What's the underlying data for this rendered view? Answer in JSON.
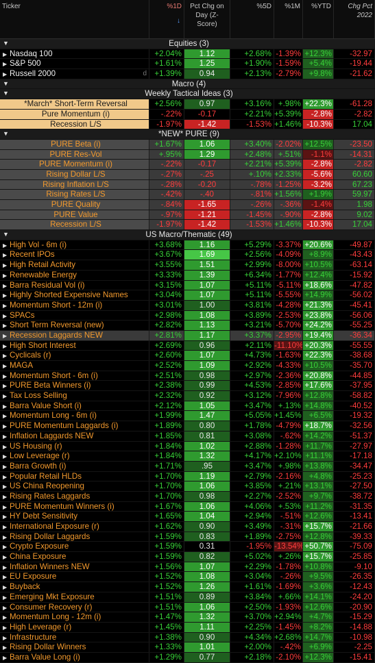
{
  "columns": [
    "Ticker",
    "%1D",
    "Pct Chg on Day (Z-Score)",
    "%5D",
    "%1M",
    "%YTD",
    "Chg Pct 2022"
  ],
  "col_header_lines": [
    [
      "Ticker"
    ],
    [
      "%1D"
    ],
    [
      "Pct Chg on",
      "Day (Z-",
      "Score)"
    ],
    [
      "%5D"
    ],
    [
      "%1M"
    ],
    [
      "%YTD"
    ],
    [
      "Chg Pct",
      "2022"
    ]
  ],
  "sort_arrow": "↓",
  "sections": [
    {
      "title": "Equities (3)",
      "rows": [
        {
          "name": "Nasdaq 100",
          "d1": "+2.04%",
          "z": "1.12",
          "d5": "+2.68%",
          "m1": "-1.39%",
          "ytd": "+12.3%",
          "y22": "-32.97",
          "style": "white",
          "zc": "g2",
          "mark": ""
        },
        {
          "name": "S&P 500",
          "d1": "+1.61%",
          "z": "1.25",
          "d5": "+1.90%",
          "m1": "-1.59%",
          "ytd": "+5.4%",
          "y22": "-19.44",
          "style": "white",
          "zc": "g2",
          "mark": ""
        },
        {
          "name": "Russell 2000",
          "d1": "+1.39%",
          "z": "0.94",
          "d5": "+2.13%",
          "m1": "-2.79%",
          "ytd": "+9.8%",
          "y22": "-21.62",
          "style": "white",
          "zc": "g1",
          "mark": "d"
        }
      ]
    },
    {
      "title": "Macro (4)",
      "rows": []
    },
    {
      "title": "Weekly Tactical Ideas (3)",
      "rows": [
        {
          "name": "*March* Short-Term Reversal",
          "d1": "+2.56%",
          "z": "0.97",
          "d5": "+3.16%",
          "m1": "+.98%",
          "ytd": "+22.3%",
          "y22": "-61.28",
          "style": "ylw",
          "zc": "g1",
          "mark": ""
        },
        {
          "name": "Pure Momentum (i)",
          "d1": "-.22%",
          "z": "-0.17",
          "d5": "+2.21%",
          "m1": "+5.39%",
          "ytd": "-2.8%",
          "y22": "-2.82",
          "style": "ylw",
          "zc": "",
          "mark": ""
        },
        {
          "name": "Recession L/S",
          "d1": "-1.97%",
          "z": "-1.42",
          "d5": "-1.53%",
          "m1": "+1.46%",
          "ytd": "-10.3%",
          "y22": "17.04",
          "style": "ylw",
          "zc": "r2",
          "mark": ""
        }
      ]
    },
    {
      "title": "*NEW* PURE (9)",
      "rows": [
        {
          "name": "PURE Beta (i)",
          "d1": "+1.67%",
          "z": "1.06",
          "d5": "+3.40%",
          "m1": "-2.02%",
          "ytd": "+12.5%",
          "y22": "-23.50",
          "style": "grey",
          "zc": "g2",
          "mark": ""
        },
        {
          "name": "PURE Res-Vol",
          "d1": "+.95%",
          "z": "1.29",
          "d5": "+2.48%",
          "m1": "+.51%",
          "ytd": "-1.1%",
          "y22": "-14.31",
          "style": "grey",
          "zc": "g2",
          "mark": ""
        },
        {
          "name": "PURE Momentum (i)",
          "d1": "-.22%",
          "z": "-0.17",
          "d5": "+2.21%",
          "m1": "+5.39%",
          "ytd": "-2.8%",
          "y22": "-2.82",
          "style": "grey",
          "zc": "",
          "mark": ""
        },
        {
          "name": "Rising Dollar L/S",
          "d1": "-.27%",
          "z": "-.25",
          "d5": "+.10%",
          "m1": "+2.33%",
          "ytd": "-5.6%",
          "y22": "60.60",
          "style": "grey",
          "zc": "",
          "mark": ""
        },
        {
          "name": "Rising Inflation L/S",
          "d1": "-.28%",
          "z": "-0.20",
          "d5": "-.78%",
          "m1": "-1.25%",
          "ytd": "-3.2%",
          "y22": "67.23",
          "style": "grey",
          "zc": "",
          "mark": ""
        },
        {
          "name": "Rising Rates L/S",
          "d1": "-.42%",
          "z": "-.40",
          "d5": "-.81%",
          "m1": "+1.56%",
          "ytd": "+1.9%",
          "y22": "59.97",
          "style": "grey",
          "zc": "",
          "mark": ""
        },
        {
          "name": "PURE Quality",
          "d1": "-.84%",
          "z": "-1.65",
          "d5": "-.26%",
          "m1": "-.36%",
          "ytd": "-1.4%",
          "y22": "1.98",
          "style": "grey",
          "zc": "r2",
          "mark": ""
        },
        {
          "name": "PURE Value",
          "d1": "-.97%",
          "z": "-1.21",
          "d5": "-1.45%",
          "m1": "-.90%",
          "ytd": "-2.8%",
          "y22": "9.02",
          "style": "grey",
          "zc": "r2",
          "mark": ""
        },
        {
          "name": "Recession L/S",
          "d1": "-1.97%",
          "z": "-1.42",
          "d5": "-1.53%",
          "m1": "+1.46%",
          "ytd": "-10.3%",
          "y22": "17.04",
          "style": "grey",
          "zc": "r2",
          "mark": ""
        }
      ]
    },
    {
      "title": "US Macro/Thematic (49)",
      "rows": [
        {
          "name": "High Vol - 6m (i)",
          "d1": "+3.68%",
          "z": "1.16",
          "d5": "+5.29%",
          "m1": "-3.37%",
          "ytd": "+20.6%",
          "y22": "-49.87",
          "style": "orange",
          "zc": "g2",
          "mark": ""
        },
        {
          "name": "Recent IPOs",
          "d1": "+3.67%",
          "z": "1.69",
          "d5": "+2.56%",
          "m1": "-4.09%",
          "ytd": "+8.9%",
          "y22": "-43.43",
          "style": "orange",
          "zc": "g3",
          "mark": ""
        },
        {
          "name": "High Retail Activity",
          "d1": "+3.55%",
          "z": "1.51",
          "d5": "+2.99%",
          "m1": "-8.00%",
          "ytd": "+10.5%",
          "y22": "-63.14",
          "style": "orange",
          "zc": "g2",
          "mark": ""
        },
        {
          "name": "Renewable Energy",
          "d1": "+3.33%",
          "z": "1.39",
          "d5": "+6.34%",
          "m1": "-1.77%",
          "ytd": "+12.4%",
          "y22": "-15.92",
          "style": "orange",
          "zc": "g2",
          "mark": ""
        },
        {
          "name": "Barra Residual Vol (i)",
          "d1": "+3.15%",
          "z": "1.07",
          "d5": "+5.11%",
          "m1": "-5.11%",
          "ytd": "+18.6%",
          "y22": "-47.82",
          "style": "orange",
          "zc": "g2",
          "mark": ""
        },
        {
          "name": "Highly Shorted Expensive Names",
          "d1": "+3.04%",
          "z": "1.07",
          "d5": "+5.11%",
          "m1": "-5.55%",
          "ytd": "+14.9%",
          "y22": "-56.02",
          "style": "orange",
          "zc": "g2",
          "mark": ""
        },
        {
          "name": "Momentum Short - 12m (i)",
          "d1": "+3.01%",
          "z": "1.00",
          "d5": "+3.81%",
          "m1": "-4.28%",
          "ytd": "+21.3%",
          "y22": "-45.41",
          "style": "orange",
          "zc": "g1",
          "mark": ""
        },
        {
          "name": "SPACs",
          "d1": "+2.98%",
          "z": "1.08",
          "d5": "+3.89%",
          "m1": "-2.53%",
          "ytd": "+23.8%",
          "y22": "-56.06",
          "style": "orange",
          "zc": "g2",
          "mark": ""
        },
        {
          "name": "Short Term Reversal (new)",
          "d1": "+2.82%",
          "z": "1.13",
          "d5": "+3.21%",
          "m1": "-5.70%",
          "ytd": "+24.2%",
          "y22": "-55.25",
          "style": "orange",
          "zc": "g2",
          "mark": ""
        },
        {
          "name": "Recession Laggards NEW",
          "d1": "+2.81%",
          "z": "1.17",
          "d5": "+3.37%",
          "m1": "-2.95%",
          "ytd": "+19.4%",
          "y22": "-36.34",
          "style": "orange-sel",
          "zc": "g2",
          "mark": ""
        },
        {
          "name": "High Short Interest",
          "d1": "+2.69%",
          "z": "0.96",
          "d5": "+2.11%",
          "m1": "-11.10%",
          "ytd": "+20.3%",
          "y22": "-55.55",
          "style": "orange",
          "zc": "g1",
          "mark": ""
        },
        {
          "name": "Cyclicals (r)",
          "d1": "+2.60%",
          "z": "1.07",
          "d5": "+4.73%",
          "m1": "-1.63%",
          "ytd": "+22.3%",
          "y22": "-38.68",
          "style": "orange",
          "zc": "g2",
          "mark": ""
        },
        {
          "name": "MAGA",
          "d1": "+2.52%",
          "z": "1.09",
          "d5": "+2.92%",
          "m1": "-4.33%",
          "ytd": "+10.5%",
          "y22": "-35.70",
          "style": "orange",
          "zc": "g2",
          "mark": ""
        },
        {
          "name": "Momentum Short - 6m (i)",
          "d1": "+2.51%",
          "z": "0.98",
          "d5": "+2.97%",
          "m1": "-2.36%",
          "ytd": "+20.8%",
          "y22": "-44.85",
          "style": "orange",
          "zc": "g1",
          "mark": ""
        },
        {
          "name": "PURE Beta Winners (i)",
          "d1": "+2.38%",
          "z": "0.99",
          "d5": "+4.53%",
          "m1": "-2.85%",
          "ytd": "+17.6%",
          "y22": "-37.95",
          "style": "orange",
          "zc": "g1",
          "mark": ""
        },
        {
          "name": "Tax Loss Selling",
          "d1": "+2.32%",
          "z": "0.92",
          "d5": "+3.12%",
          "m1": "-7.96%",
          "ytd": "+12.8%",
          "y22": "-58.82",
          "style": "orange",
          "zc": "g1",
          "mark": ""
        },
        {
          "name": "Barra Value Short (i)",
          "d1": "+2.12%",
          "z": "1.05",
          "d5": "+3.47%",
          "m1": "+.13%",
          "ytd": "+14.8%",
          "y22": "-40.52",
          "style": "orange",
          "zc": "g2",
          "mark": ""
        },
        {
          "name": "Momentum Long - 6m (i)",
          "d1": "+1.99%",
          "z": "1.47",
          "d5": "+5.05%",
          "m1": "+1.45%",
          "ytd": "+6.5%",
          "y22": "-19.32",
          "style": "orange",
          "zc": "g2",
          "mark": ""
        },
        {
          "name": "PURE Momentum Laggards (i)",
          "d1": "+1.89%",
          "z": "0.80",
          "d5": "+1.78%",
          "m1": "-4.79%",
          "ytd": "+18.7%",
          "y22": "-32.56",
          "style": "orange",
          "zc": "g1",
          "mark": ""
        },
        {
          "name": "Inflation Laggards NEW",
          "d1": "+1.85%",
          "z": "0.81",
          "d5": "+3.08%",
          "m1": "-.62%",
          "ytd": "+14.2%",
          "y22": "-51.37",
          "style": "orange",
          "zc": "g1",
          "mark": ""
        },
        {
          "name": "US Housing (r)",
          "d1": "+1.84%",
          "z": "1.02",
          "d5": "+2.88%",
          "m1": "-1.28%",
          "ytd": "+11.7%",
          "y22": "-27.97",
          "style": "orange",
          "zc": "g2",
          "mark": ""
        },
        {
          "name": "Low Leverage (r)",
          "d1": "+1.84%",
          "z": "1.32",
          "d5": "+4.17%",
          "m1": "+2.10%",
          "ytd": "+11.1%",
          "y22": "-17.18",
          "style": "orange",
          "zc": "g2",
          "mark": ""
        },
        {
          "name": "Barra Growth (i)",
          "d1": "+1.71%",
          "z": ".95",
          "d5": "+3.47%",
          "m1": "+.98%",
          "ytd": "+13.8%",
          "y22": "-34.47",
          "style": "orange",
          "zc": "g1",
          "mark": ""
        },
        {
          "name": "Popular Retail HLDs",
          "d1": "+1.70%",
          "z": "1.19",
          "d5": "+2.79%",
          "m1": "-2.16%",
          "ytd": "+4.8%",
          "y22": "-25.23",
          "style": "orange",
          "zc": "g2",
          "mark": ""
        },
        {
          "name": "US China Reopening",
          "d1": "+1.70%",
          "z": "1.06",
          "d5": "+3.85%",
          "m1": "+.21%",
          "ytd": "+13.1%",
          "y22": "-27.50",
          "style": "orange",
          "zc": "g2",
          "mark": ""
        },
        {
          "name": "Rising Rates Laggards",
          "d1": "+1.70%",
          "z": "0.98",
          "d5": "+2.27%",
          "m1": "-2.52%",
          "ytd": "+9.7%",
          "y22": "-38.72",
          "style": "orange",
          "zc": "g1",
          "mark": ""
        },
        {
          "name": "PURE Momentum Winners (i)",
          "d1": "+1.67%",
          "z": "1.06",
          "d5": "+4.06%",
          "m1": "+.53%",
          "ytd": "+11.2%",
          "y22": "-31.35",
          "style": "orange",
          "zc": "g2",
          "mark": ""
        },
        {
          "name": "HY Debt Sensitivity",
          "d1": "+1.65%",
          "z": "1.04",
          "d5": "+2.94%",
          "m1": "-.51%",
          "ytd": "+12.6%",
          "y22": "-13.41",
          "style": "orange",
          "zc": "g2",
          "mark": ""
        },
        {
          "name": "International Exposure (r)",
          "d1": "+1.62%",
          "z": "0.90",
          "d5": "+3.49%",
          "m1": "-.31%",
          "ytd": "+15.7%",
          "y22": "-21.66",
          "style": "orange",
          "zc": "g1",
          "mark": ""
        },
        {
          "name": "Rising Dollar Laggards",
          "d1": "+1.59%",
          "z": "0.83",
          "d5": "+1.89%",
          "m1": "-2.75%",
          "ytd": "+12.8%",
          "y22": "-39.33",
          "style": "orange",
          "zc": "g1",
          "mark": ""
        },
        {
          "name": "Crypto Exposure",
          "d1": "+1.59%",
          "z": "0.31",
          "d5": "-1.95%",
          "m1": "-13.54%",
          "ytd": "+50.7%",
          "y22": "-75.09",
          "style": "orange",
          "zc": "",
          "mark": ""
        },
        {
          "name": "China Exposure",
          "d1": "+1.59%",
          "z": "0.82",
          "d5": "+5.02%",
          "m1": "+.26%",
          "ytd": "+15.7%",
          "y22": "-25.85",
          "style": "orange",
          "zc": "g1",
          "mark": ""
        },
        {
          "name": "Inflation Winners NEW",
          "d1": "+1.56%",
          "z": "1.07",
          "d5": "+2.29%",
          "m1": "-1.78%",
          "ytd": "+10.8%",
          "y22": "-9.10",
          "style": "orange",
          "zc": "g2",
          "mark": ""
        },
        {
          "name": "EU Exposure",
          "d1": "+1.52%",
          "z": "1.08",
          "d5": "+3.04%",
          "m1": "-.26%",
          "ytd": "+9.5%",
          "y22": "-26.35",
          "style": "orange",
          "zc": "g2",
          "mark": ""
        },
        {
          "name": "Buyback",
          "d1": "+1.52%",
          "z": "1.26",
          "d5": "+1.61%",
          "m1": "-1.69%",
          "ytd": "+3.6%",
          "y22": "-12.43",
          "style": "orange",
          "zc": "g2",
          "mark": ""
        },
        {
          "name": "Emerging Mkt Exposure",
          "d1": "+1.51%",
          "z": "0.89",
          "d5": "+3.84%",
          "m1": "+.66%",
          "ytd": "+14.1%",
          "y22": "-24.20",
          "style": "orange",
          "zc": "g1",
          "mark": ""
        },
        {
          "name": "Consumer Recovery (r)",
          "d1": "+1.51%",
          "z": "1.06",
          "d5": "+2.50%",
          "m1": "-1.93%",
          "ytd": "+12.6%",
          "y22": "-20.90",
          "style": "orange",
          "zc": "g2",
          "mark": ""
        },
        {
          "name": "Momentum Long - 12m (i)",
          "d1": "+1.47%",
          "z": "1.32",
          "d5": "+3.70%",
          "m1": "+2.94%",
          "ytd": "+4.7%",
          "y22": "-15.29",
          "style": "orange",
          "zc": "g2",
          "mark": ""
        },
        {
          "name": "High Leverage (r)",
          "d1": "+1.45%",
          "z": "1.11",
          "d5": "+2.25%",
          "m1": "-1.45%",
          "ytd": "+8.2%",
          "y22": "-14.88",
          "style": "orange",
          "zc": "g2",
          "mark": ""
        },
        {
          "name": "Infrastructure",
          "d1": "+1.38%",
          "z": "0.90",
          "d5": "+4.34%",
          "m1": "+2.68%",
          "ytd": "+14.7%",
          "y22": "-10.98",
          "style": "orange",
          "zc": "g1",
          "mark": ""
        },
        {
          "name": "Rising Dollar Winners",
          "d1": "+1.33%",
          "z": "1.01",
          "d5": "+2.00%",
          "m1": "-.42%",
          "ytd": "+6.9%",
          "y22": "-2.25",
          "style": "orange",
          "zc": "g2",
          "mark": ""
        },
        {
          "name": "Barra Value Long (i)",
          "d1": "+1.29%",
          "z": "0.77",
          "d5": "+2.18%",
          "m1": "-2.10%",
          "ytd": "+12.3%",
          "y22": "-15.41",
          "style": "orange",
          "zc": "g1",
          "mark": ""
        }
      ]
    }
  ],
  "colors": {
    "positive": "#38d238",
    "negative": "#ff3d3d",
    "name_orange": "#f39a2e",
    "zscore_green": "#46c646",
    "zscore_red": "#c82323"
  }
}
